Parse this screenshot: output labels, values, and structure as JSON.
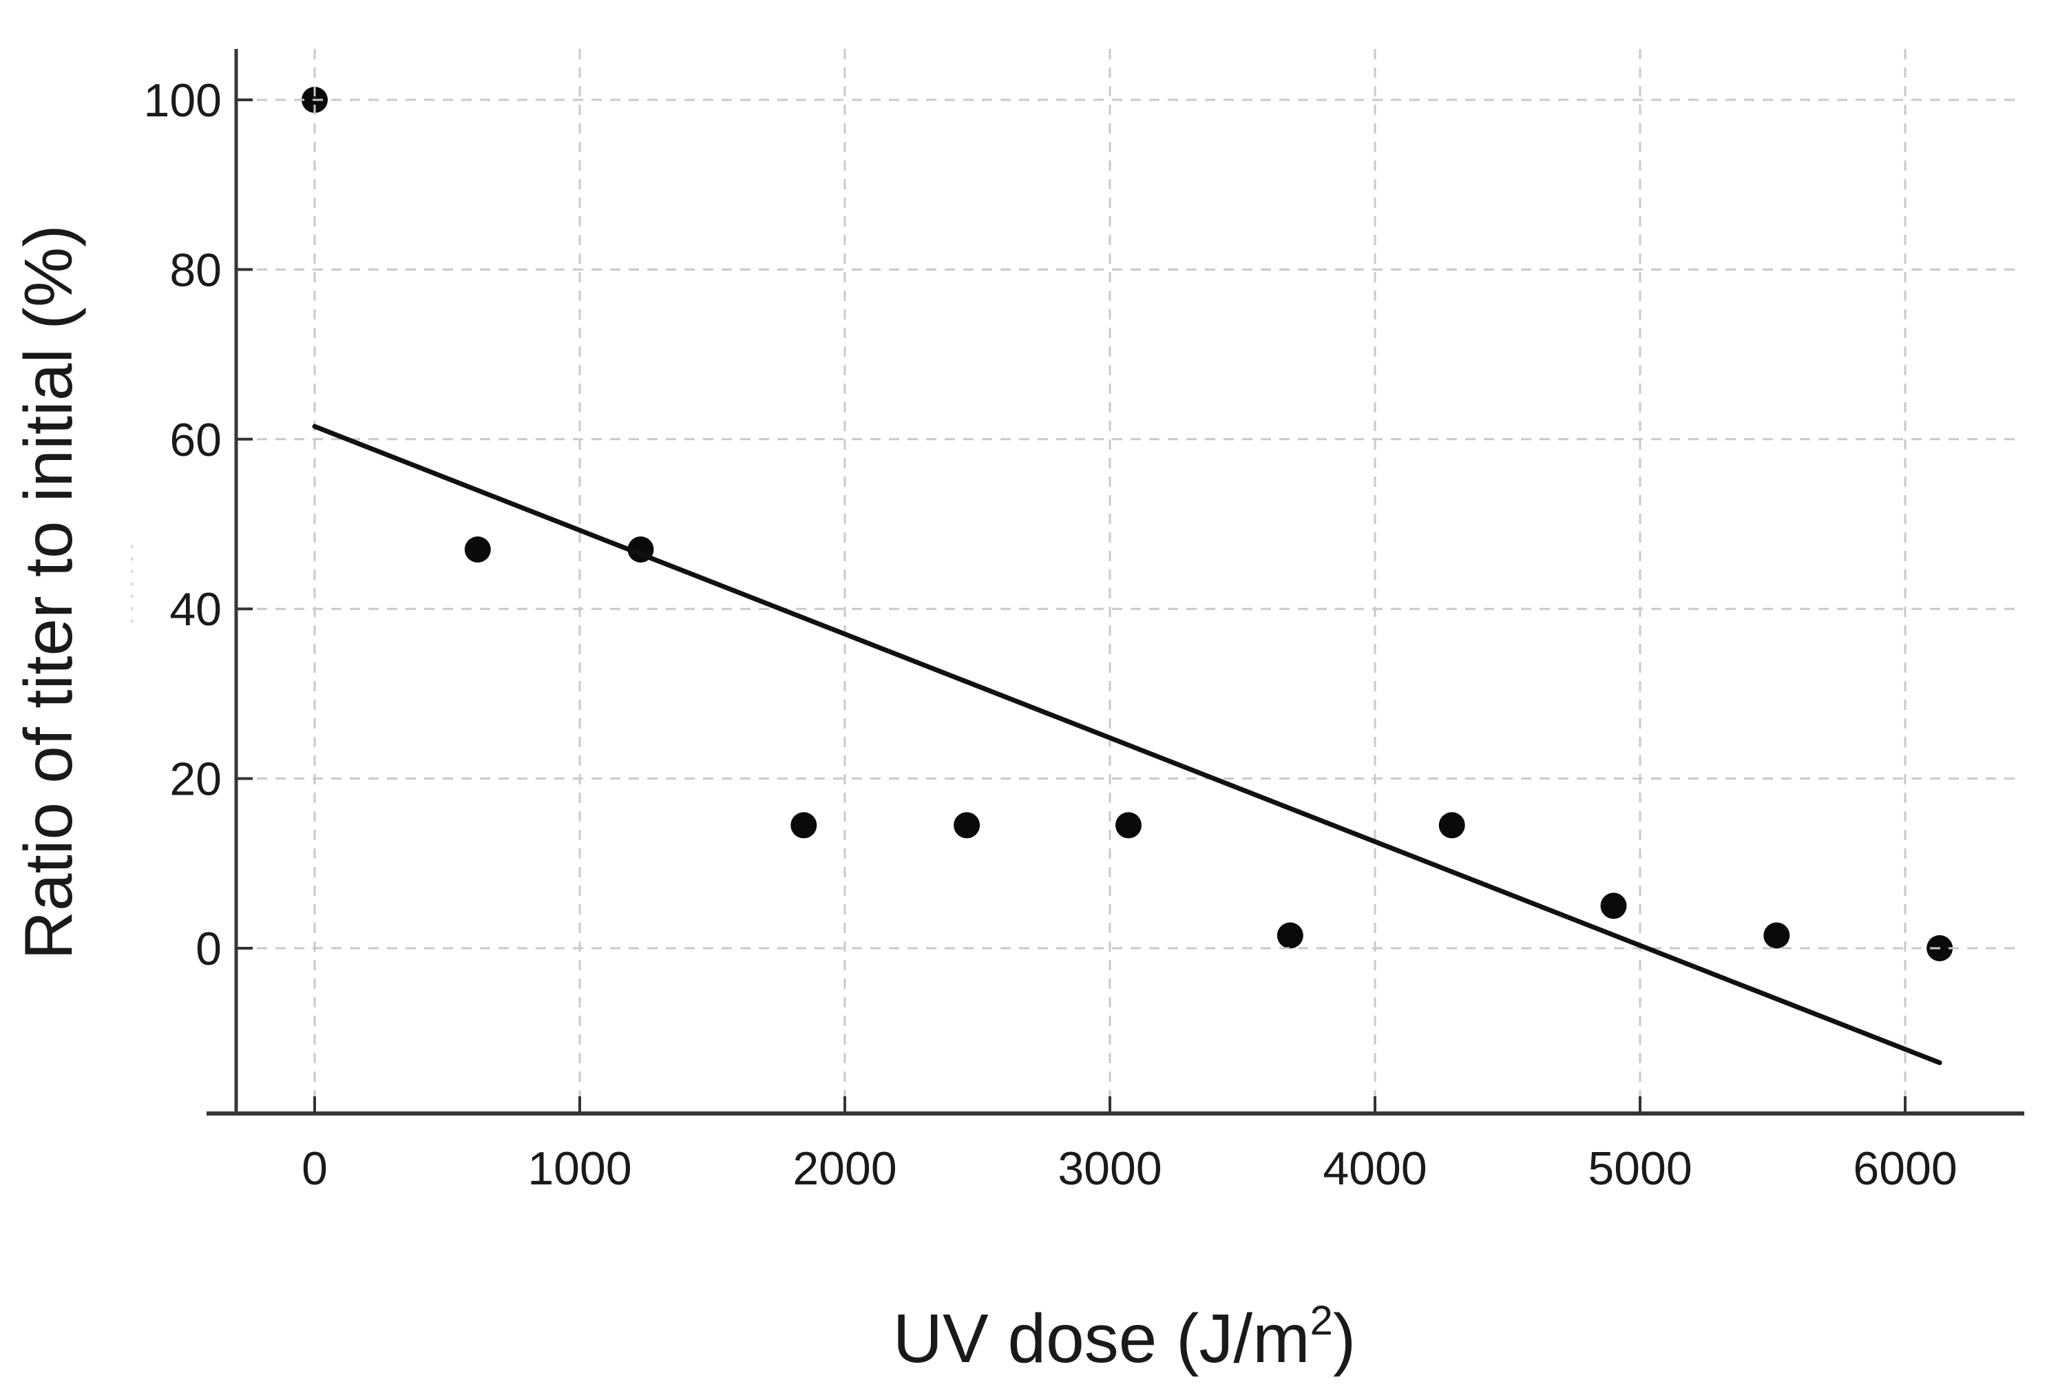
{
  "chart_data": {
    "type": "scatter",
    "title": "",
    "xlabel": "UV dose (J/m²)",
    "xlabel_parts": {
      "base": "UV dose (J/m",
      "sup": "2",
      "close": ")"
    },
    "ylabel": "Ratio of titer to initial (%)",
    "x_ticks": [
      0,
      1000,
      2000,
      3000,
      4000,
      5000,
      6000
    ],
    "y_ticks": [
      0,
      20,
      40,
      60,
      80,
      100
    ],
    "xlim": [
      -300,
      6450
    ],
    "ylim": [
      -21,
      106
    ],
    "grid": "dashed-both-axes",
    "legend": "none",
    "points": [
      {
        "x": 0,
        "y": 100
      },
      {
        "x": 615,
        "y": 47
      },
      {
        "x": 1230,
        "y": 47
      },
      {
        "x": 1845,
        "y": 14.5
      },
      {
        "x": 2460,
        "y": 14.5
      },
      {
        "x": 3070,
        "y": 14.5
      },
      {
        "x": 3680,
        "y": 1.5
      },
      {
        "x": 4290,
        "y": 14.5
      },
      {
        "x": 4900,
        "y": 5
      },
      {
        "x": 5515,
        "y": 1.5
      },
      {
        "x": 6130,
        "y": 0
      }
    ],
    "trend_line": {
      "x1": 0,
      "y1": 61.5,
      "x2": 6130,
      "y2": -13.5
    },
    "marker": {
      "shape": "circle",
      "radius_px": 19,
      "color": "#0a0a0a"
    },
    "colors": {
      "background": "#ffffff",
      "grid": "#c9c9c9",
      "axis": "#363636",
      "tick": "#333333",
      "text": "#1a1a1a",
      "trend_line": "#111111",
      "artifact": "#d2d2d2"
    }
  }
}
